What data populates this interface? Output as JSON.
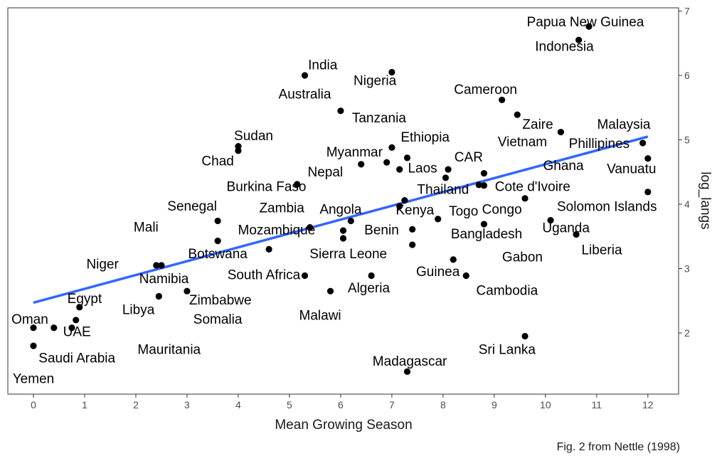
{
  "chart_data": {
    "type": "scatter",
    "xlabel": "Mean Growing Season",
    "ylabel": "log_langs",
    "caption": "Fig. 2 from Nettle (1998)",
    "xlim": [
      -0.5,
      12.6
    ],
    "ylim": [
      1.05,
      7.05
    ],
    "xticks": [
      0,
      1,
      2,
      3,
      4,
      5,
      6,
      7,
      8,
      9,
      10,
      11,
      12
    ],
    "yticks": [
      2,
      3,
      4,
      5,
      6,
      7
    ],
    "grid": false,
    "point_color": "#000000",
    "trend_color": "#3366ff",
    "trend_line": {
      "x": [
        0,
        12
      ],
      "y": [
        2.47,
        5.05
      ]
    },
    "points": [
      {
        "x": 0.0,
        "y": 2.08
      },
      {
        "x": 0.0,
        "y": 1.8
      },
      {
        "x": 0.4,
        "y": 2.08
      },
      {
        "x": 0.75,
        "y": 2.08
      },
      {
        "x": 0.83,
        "y": 2.2
      },
      {
        "x": 0.9,
        "y": 2.4
      },
      {
        "x": 2.4,
        "y": 3.05
      },
      {
        "x": 2.5,
        "y": 3.05
      },
      {
        "x": 2.45,
        "y": 2.57
      },
      {
        "x": 3.0,
        "y": 2.65
      },
      {
        "x": 3.6,
        "y": 3.74
      },
      {
        "x": 3.6,
        "y": 3.43
      },
      {
        "x": 4.0,
        "y": 4.9
      },
      {
        "x": 4.0,
        "y": 4.83
      },
      {
        "x": 4.6,
        "y": 3.3
      },
      {
        "x": 5.15,
        "y": 4.31
      },
      {
        "x": 5.3,
        "y": 2.89
      },
      {
        "x": 5.3,
        "y": 6.0
      },
      {
        "x": 5.4,
        "y": 3.64
      },
      {
        "x": 5.8,
        "y": 2.65
      },
      {
        "x": 6.0,
        "y": 5.45
      },
      {
        "x": 6.05,
        "y": 3.59
      },
      {
        "x": 6.05,
        "y": 3.47
      },
      {
        "x": 6.2,
        "y": 3.74
      },
      {
        "x": 6.4,
        "y": 4.62
      },
      {
        "x": 6.6,
        "y": 2.89
      },
      {
        "x": 6.9,
        "y": 4.65
      },
      {
        "x": 7.0,
        "y": 6.05
      },
      {
        "x": 7.0,
        "y": 4.88
      },
      {
        "x": 7.15,
        "y": 3.97
      },
      {
        "x": 7.15,
        "y": 4.54
      },
      {
        "x": 7.25,
        "y": 4.06
      },
      {
        "x": 7.3,
        "y": 4.72
      },
      {
        "x": 7.3,
        "y": 1.4
      },
      {
        "x": 7.4,
        "y": 3.37
      },
      {
        "x": 7.4,
        "y": 3.61
      },
      {
        "x": 7.9,
        "y": 3.77
      },
      {
        "x": 8.05,
        "y": 4.41
      },
      {
        "x": 8.1,
        "y": 4.54
      },
      {
        "x": 8.2,
        "y": 3.14
      },
      {
        "x": 8.45,
        "y": 2.89
      },
      {
        "x": 8.7,
        "y": 4.3
      },
      {
        "x": 8.8,
        "y": 3.69
      },
      {
        "x": 8.8,
        "y": 4.29
      },
      {
        "x": 8.8,
        "y": 4.48
      },
      {
        "x": 9.15,
        "y": 5.62
      },
      {
        "x": 9.45,
        "y": 5.39
      },
      {
        "x": 9.6,
        "y": 4.09
      },
      {
        "x": 9.6,
        "y": 1.95
      },
      {
        "x": 10.1,
        "y": 3.75
      },
      {
        "x": 10.3,
        "y": 5.12
      },
      {
        "x": 10.6,
        "y": 3.53
      },
      {
        "x": 10.65,
        "y": 6.55
      },
      {
        "x": 10.85,
        "y": 6.76
      },
      {
        "x": 11.9,
        "y": 4.95
      },
      {
        "x": 12.0,
        "y": 4.71
      },
      {
        "x": 12.0,
        "y": 4.19
      }
    ],
    "labels": [
      {
        "text": "Papua New Guinea",
        "x": 10.78,
        "y": 6.84
      },
      {
        "text": "Indonesia",
        "x": 10.37,
        "y": 6.46
      },
      {
        "text": "India",
        "x": 5.65,
        "y": 6.17
      },
      {
        "text": "Nigeria",
        "x": 6.67,
        "y": 5.93
      },
      {
        "text": "Australia",
        "x": 5.3,
        "y": 5.72
      },
      {
        "text": "Cameroon",
        "x": 8.83,
        "y": 5.79
      },
      {
        "text": "Tanzania",
        "x": 6.75,
        "y": 5.35
      },
      {
        "text": "Zaire",
        "x": 9.85,
        "y": 5.25
      },
      {
        "text": "Malaysia",
        "x": 11.53,
        "y": 5.25
      },
      {
        "text": "Sudan",
        "x": 4.3,
        "y": 5.07
      },
      {
        "text": "Ethiopia",
        "x": 7.65,
        "y": 5.05
      },
      {
        "text": "Vietnam",
        "x": 9.55,
        "y": 4.98
      },
      {
        "text": "Phillipines",
        "x": 11.05,
        "y": 4.95
      },
      {
        "text": "Chad",
        "x": 3.6,
        "y": 4.68
      },
      {
        "text": "Myanmar",
        "x": 6.27,
        "y": 4.82
      },
      {
        "text": "CAR",
        "x": 8.5,
        "y": 4.74
      },
      {
        "text": "Laos",
        "x": 7.6,
        "y": 4.57
      },
      {
        "text": "Ghana",
        "x": 10.35,
        "y": 4.61
      },
      {
        "text": "Vanuatu",
        "x": 11.68,
        "y": 4.56
      },
      {
        "text": "Nepal",
        "x": 5.7,
        "y": 4.51
      },
      {
        "text": "Burkina Faso",
        "x": 4.55,
        "y": 4.28
      },
      {
        "text": "Thailand",
        "x": 8.0,
        "y": 4.24
      },
      {
        "text": "Cote d'Ivoire",
        "x": 9.75,
        "y": 4.28
      },
      {
        "text": "Senegal",
        "x": 3.1,
        "y": 3.98
      },
      {
        "text": "Zambia",
        "x": 4.85,
        "y": 3.95
      },
      {
        "text": "Angola",
        "x": 6.0,
        "y": 3.93
      },
      {
        "text": "Kenya",
        "x": 7.45,
        "y": 3.92
      },
      {
        "text": "Togo",
        "x": 8.4,
        "y": 3.9
      },
      {
        "text": "Congo",
        "x": 9.15,
        "y": 3.93
      },
      {
        "text": "Solomon Islands",
        "x": 11.2,
        "y": 3.97
      },
      {
        "text": "Mali",
        "x": 2.2,
        "y": 3.65
      },
      {
        "text": "Mozambique",
        "x": 4.75,
        "y": 3.61
      },
      {
        "text": "Benin",
        "x": 6.8,
        "y": 3.61
      },
      {
        "text": "Uganda",
        "x": 10.4,
        "y": 3.64
      },
      {
        "text": "Bangladesh",
        "x": 8.85,
        "y": 3.55
      },
      {
        "text": "Botswana",
        "x": 3.6,
        "y": 3.24
      },
      {
        "text": "Sierra Leone",
        "x": 6.15,
        "y": 3.24
      },
      {
        "text": "Liberia",
        "x": 11.1,
        "y": 3.3
      },
      {
        "text": "Niger",
        "x": 1.35,
        "y": 3.08
      },
      {
        "text": "Gabon",
        "x": 9.55,
        "y": 3.19
      },
      {
        "text": "Namibia",
        "x": 2.55,
        "y": 2.85
      },
      {
        "text": "South Africa",
        "x": 4.5,
        "y": 2.91
      },
      {
        "text": "Guinea",
        "x": 7.9,
        "y": 2.96
      },
      {
        "text": "Algeria",
        "x": 6.55,
        "y": 2.71
      },
      {
        "text": "Cambodia",
        "x": 9.25,
        "y": 2.67
      },
      {
        "text": "Egypt",
        "x": 1.0,
        "y": 2.54
      },
      {
        "text": "Zimbabwe",
        "x": 3.65,
        "y": 2.52
      },
      {
        "text": "Libya",
        "x": 2.05,
        "y": 2.37
      },
      {
        "text": "Oman",
        "x": -0.07,
        "y": 2.22
      },
      {
        "text": "Somalia",
        "x": 3.6,
        "y": 2.22
      },
      {
        "text": "Malawi",
        "x": 5.6,
        "y": 2.28
      },
      {
        "text": "UAE",
        "x": 0.85,
        "y": 2.03
      },
      {
        "text": "Mauritania",
        "x": 2.65,
        "y": 1.75
      },
      {
        "text": "Sri Lanka",
        "x": 9.25,
        "y": 1.75
      },
      {
        "text": "Saudi Arabia",
        "x": 0.85,
        "y": 1.62
      },
      {
        "text": "Madagascar",
        "x": 7.35,
        "y": 1.57
      },
      {
        "text": "Yemen",
        "x": 0.0,
        "y": 1.3
      }
    ]
  }
}
